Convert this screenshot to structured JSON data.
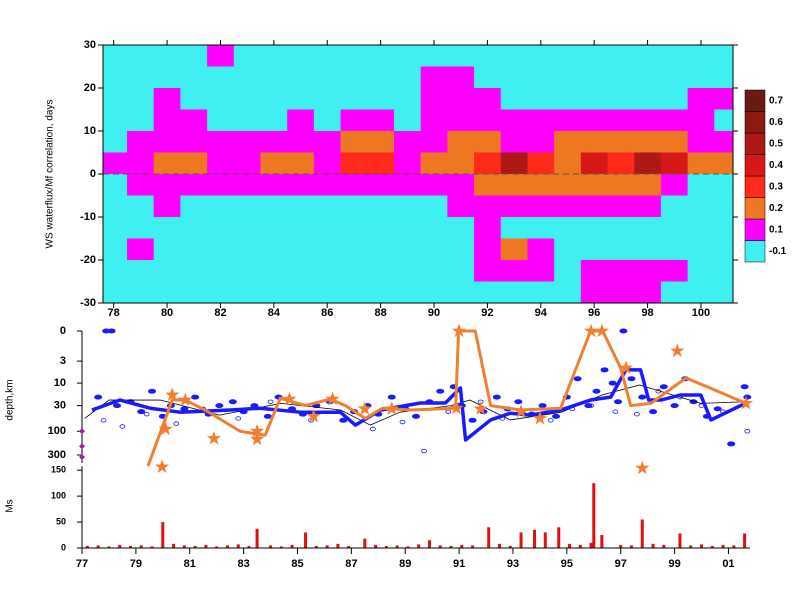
{
  "chart_data": [
    {
      "type": "heatmap",
      "ylabel": "WS waterflux/Mf correlation, days",
      "x": [
        78,
        79,
        80,
        81,
        82,
        83,
        84,
        85,
        86,
        87,
        88,
        89,
        90,
        91,
        92,
        93,
        94,
        95,
        96,
        97,
        98,
        99,
        100,
        101
      ],
      "y": [
        27.5,
        22.5,
        17.5,
        12.5,
        7.5,
        2.5,
        -2.5,
        -7.5,
        -12.5,
        -17.5,
        -22.5,
        -27.5
      ],
      "z": [
        [
          0.05,
          0.05,
          0.05,
          0.05,
          0.15,
          0.05,
          0.05,
          0.05,
          0.05,
          0.05,
          0.05,
          0.05,
          0.05,
          0.05,
          0.05,
          0.05,
          0.05,
          0.05,
          0.05,
          0.05,
          0.05,
          0.05,
          0.05,
          0.05
        ],
        [
          0.05,
          0.05,
          0.05,
          0.05,
          0.05,
          0.05,
          0.05,
          0.05,
          0.05,
          0.05,
          0.05,
          0.05,
          0.15,
          0.15,
          0.05,
          0.05,
          0.05,
          0.05,
          0.05,
          0.05,
          0.05,
          0.05,
          0.05,
          0.05
        ],
        [
          0.05,
          0.05,
          0.15,
          0.05,
          0.05,
          0.05,
          0.05,
          0.05,
          0.05,
          0.05,
          0.05,
          0.05,
          0.15,
          0.15,
          0.15,
          0.05,
          0.05,
          0.05,
          0.05,
          0.05,
          0.05,
          0.05,
          0.15,
          0.15
        ],
        [
          0.05,
          0.05,
          0.15,
          0.15,
          0.05,
          0.05,
          0.05,
          0.15,
          0.05,
          0.15,
          0.15,
          0.05,
          0.15,
          0.15,
          0.15,
          0.15,
          0.15,
          0.15,
          0.15,
          0.15,
          0.15,
          0.15,
          0.15,
          0.05
        ],
        [
          0.05,
          0.15,
          0.15,
          0.15,
          0.15,
          0.15,
          0.15,
          0.15,
          0.15,
          0.25,
          0.25,
          0.15,
          0.15,
          0.25,
          0.25,
          0.15,
          0.15,
          0.25,
          0.25,
          0.25,
          0.25,
          0.25,
          0.15,
          0.15
        ],
        [
          0.15,
          0.15,
          0.25,
          0.25,
          0.15,
          0.15,
          0.25,
          0.25,
          0.15,
          0.35,
          0.35,
          0.15,
          0.25,
          0.25,
          0.35,
          0.55,
          0.35,
          0.25,
          0.45,
          0.35,
          0.55,
          0.45,
          0.25,
          0.25
        ],
        [
          0.05,
          0.15,
          0.15,
          0.15,
          0.15,
          0.15,
          0.15,
          0.15,
          0.15,
          0.15,
          0.15,
          0.15,
          0.15,
          0.15,
          0.25,
          0.25,
          0.25,
          0.25,
          0.25,
          0.25,
          0.25,
          0.15,
          0.05,
          0.05
        ],
        [
          0.05,
          0.05,
          0.15,
          0.05,
          0.05,
          0.05,
          0.05,
          0.05,
          0.05,
          0.05,
          0.05,
          0.05,
          0.05,
          0.15,
          0.15,
          0.15,
          0.15,
          0.15,
          0.15,
          0.15,
          0.15,
          0.05,
          0.05,
          0.05
        ],
        [
          0.05,
          0.05,
          0.05,
          0.05,
          0.05,
          0.05,
          0.05,
          0.05,
          0.05,
          0.05,
          0.05,
          0.05,
          0.05,
          0.05,
          0.15,
          0.05,
          0.05,
          0.05,
          0.05,
          0.05,
          0.05,
          0.05,
          0.05,
          0.05
        ],
        [
          0.05,
          0.15,
          0.05,
          0.05,
          0.05,
          0.05,
          0.05,
          0.05,
          0.05,
          0.05,
          0.05,
          0.05,
          0.05,
          0.05,
          0.15,
          0.25,
          0.15,
          0.05,
          0.05,
          0.05,
          0.05,
          0.05,
          0.05,
          0.05
        ],
        [
          0.05,
          0.05,
          0.05,
          0.05,
          0.05,
          0.05,
          0.05,
          0.05,
          0.05,
          0.05,
          0.05,
          0.05,
          0.05,
          0.05,
          0.15,
          0.15,
          0.15,
          0.05,
          0.15,
          0.15,
          0.15,
          0.15,
          0.05,
          0.05
        ],
        [
          0.05,
          0.05,
          0.05,
          0.05,
          0.05,
          0.05,
          0.05,
          0.05,
          0.05,
          0.05,
          0.05,
          0.05,
          0.05,
          0.05,
          0.05,
          0.05,
          0.05,
          0.05,
          0.15,
          0.15,
          0.15,
          0.05,
          0.05,
          0.05
        ]
      ],
      "levels": [
        -0.1,
        0.1,
        0.2,
        0.3,
        0.4,
        0.5,
        0.6,
        0.7
      ],
      "colors": [
        "#40f0f0",
        "#ff00ff",
        "#ee7722",
        "#ff2a1a",
        "#d81818",
        "#b01818",
        "#8c1a10",
        "#6a1a0e"
      ],
      "xlim": [
        77.6,
        101.2
      ],
      "ylim": [
        -30,
        30
      ],
      "xticks": [
        78,
        80,
        82,
        84,
        86,
        88,
        90,
        92,
        94,
        96,
        98,
        100
      ],
      "yticks": [
        -30,
        -20,
        -10,
        0,
        10,
        20,
        30
      ],
      "hline": 0
    },
    {
      "type": "scatter-line",
      "ylabel": "depth,km",
      "yscale": "log1p",
      "yinvert": true,
      "xlim": [
        77,
        101.8
      ],
      "ylim": [
        0,
        600
      ],
      "yticks": [
        0,
        3,
        10,
        30,
        100,
        300
      ],
      "series": [
        {
          "kind": "dot",
          "color": "#1a1aff",
          "x": [
            77.9,
            78.1,
            77.6,
            78.3,
            78.8,
            79.2,
            79.6,
            80.0,
            80.3,
            80.8,
            81.2,
            81.7,
            82.1,
            82.6,
            83.0,
            83.4,
            83.9,
            84.3,
            84.8,
            85.2,
            85.7,
            86.2,
            86.7,
            87.1,
            87.6,
            88.0,
            88.5,
            89.0,
            89.4,
            89.9,
            90.3,
            90.8,
            91.1,
            91.5,
            91.9,
            92.4,
            92.8,
            93.2,
            93.7,
            94.1,
            94.6,
            95.0,
            95.4,
            95.8,
            96.1,
            96.4,
            96.7,
            96.9,
            97.1,
            97.4,
            97.8,
            98.2,
            98.6,
            99.0,
            99.4,
            99.7,
            100.2,
            100.6,
            101.1,
            101.6,
            101.7
          ],
          "values": [
            0,
            0,
            20,
            30,
            25,
            40,
            15,
            50,
            30,
            35,
            20,
            45,
            30,
            25,
            40,
            30,
            50,
            20,
            35,
            45,
            30,
            25,
            60,
            40,
            30,
            45,
            20,
            35,
            50,
            25,
            15,
            12,
            30,
            60,
            40,
            20,
            35,
            25,
            45,
            30,
            50,
            20,
            8,
            30,
            15,
            5,
            10,
            25,
            0,
            8,
            20,
            40,
            12,
            30,
            8,
            25,
            50,
            35,
            180,
            12,
            20
          ]
        },
        {
          "kind": "ring",
          "color": "#1a1aff",
          "x": [
            77.8,
            78.5,
            79.4,
            80.5,
            81.5,
            82.8,
            84.0,
            85.5,
            86.5,
            87.8,
            88.9,
            89.7,
            90.6,
            91.8,
            92.6,
            93.4,
            94.4,
            95.2,
            95.9,
            96.8,
            97.6,
            98.4,
            99.2,
            100.0,
            100.8,
            101.7
          ],
          "values": [
            60,
            80,
            45,
            70,
            35,
            55,
            25,
            60,
            40,
            90,
            65,
            250,
            40,
            25,
            55,
            45,
            60,
            35,
            30,
            40,
            45,
            15,
            20,
            30,
            40,
            100
          ]
        },
        {
          "kind": "diamond",
          "color": "#a020a0",
          "x": [
            77.0,
            77.0,
            77.0
          ],
          "values": [
            100,
            200,
            330
          ]
        },
        {
          "kind": "line",
          "color": "#000000",
          "width": 0.8,
          "x": [
            77.1,
            78.0,
            79.9,
            82.1,
            84.4,
            86.6,
            87.7,
            88.8,
            90.7,
            91.4,
            92.9,
            94.8,
            96.3,
            97.7,
            99.97,
            101.65
          ],
          "values": [
            55,
            23,
            23,
            47,
            27,
            37,
            75,
            41,
            30,
            23,
            59,
            41,
            18,
            11,
            27,
            25
          ]
        },
        {
          "kind": "line",
          "color": "#1a1aff",
          "width": 3.5,
          "x": [
            77.37,
            78.41,
            79.53,
            80.64,
            82.5,
            83.62,
            85.1,
            86.59,
            87.15,
            88.08,
            89.57,
            90.49,
            91.05,
            91.24,
            92.17,
            92.91,
            93.65,
            94.77,
            95.88,
            96.63,
            97.19,
            97.74,
            98.04,
            98.49,
            99.23,
            99.97,
            100.35,
            101.65
          ],
          "values": [
            37,
            23,
            34,
            41,
            37,
            34,
            41,
            41,
            75,
            37,
            26.5,
            26.5,
            12.8,
            150,
            59,
            43,
            47,
            37,
            23,
            20,
            5,
            5,
            23,
            23,
            18,
            18,
            59,
            26.5
          ]
        },
        {
          "kind": "line",
          "color": "#f08030",
          "width": 3,
          "x": [
            79.45,
            80.35,
            80.83,
            81.57,
            82.87,
            83.8,
            84.36,
            85.29,
            86.22,
            86.78,
            87.52,
            88.15,
            89.19,
            90.87,
            90.98,
            91.6,
            92.17,
            93.28,
            94.77,
            95.88,
            96.33,
            97.0,
            97.37,
            98.12,
            99.42,
            100.35,
            101.65
          ],
          "values": [
            500,
            23,
            23,
            37,
            100,
            120,
            21,
            30,
            22,
            30,
            55,
            34,
            37,
            34,
            0,
            0,
            30,
            37,
            34,
            0,
            0,
            4.5,
            30,
            27,
            7.7,
            13,
            27
          ]
        },
        {
          "kind": "star",
          "color": "#f08030",
          "x": [
            79.97,
            80.35,
            80.83,
            80.1,
            81.9,
            83.5,
            83.5,
            84.7,
            85.6,
            86.3,
            87.5,
            88.5,
            90.9,
            91.0,
            91.8,
            93.3,
            94.0,
            95.9,
            96.3,
            97.2,
            97.8,
            99.1,
            101.65
          ],
          "values": [
            520,
            18,
            23,
            90,
            140,
            145,
            100,
            22,
            50,
            22,
            35,
            35,
            34,
            0,
            35,
            40,
            55,
            0,
            0,
            4.5,
            550,
            1.5,
            27
          ]
        }
      ]
    },
    {
      "type": "bar",
      "ylabel": "Ms",
      "color": "#e01010",
      "x": [
        77.2,
        77.6,
        78.0,
        78.4,
        78.8,
        79.2,
        79.6,
        80.0,
        80.4,
        80.8,
        81.2,
        81.6,
        82.0,
        82.4,
        82.8,
        83.2,
        83.5,
        84.0,
        84.4,
        84.8,
        85.3,
        85.7,
        86.1,
        86.5,
        86.9,
        87.5,
        87.9,
        88.3,
        88.7,
        89.1,
        89.5,
        89.9,
        90.3,
        90.7,
        91.1,
        91.5,
        92.1,
        92.5,
        92.9,
        93.3,
        93.8,
        94.2,
        94.7,
        95.1,
        95.5,
        95.9,
        96.0,
        96.3,
        97.0,
        97.4,
        97.8,
        98.2,
        98.6,
        99.2,
        99.6,
        100.0,
        100.4,
        100.8,
        101.2,
        101.6
      ],
      "values": [
        4,
        5,
        3,
        6,
        4,
        5,
        3,
        50,
        8,
        5,
        4,
        6,
        3,
        5,
        7,
        4,
        37,
        5,
        3,
        6,
        30,
        4,
        5,
        8,
        4,
        18,
        6,
        4,
        5,
        3,
        7,
        15,
        5,
        4,
        6,
        5,
        40,
        8,
        4,
        30,
        35,
        30,
        40,
        8,
        6,
        10,
        125,
        25,
        6,
        5,
        55,
        8,
        6,
        28,
        5,
        7,
        4,
        6,
        5,
        28
      ],
      "xlim": [
        77,
        101.8
      ],
      "ylim": [
        0,
        160
      ],
      "xticks": [
        77,
        79,
        81,
        83,
        85,
        87,
        89,
        91,
        93,
        95,
        97,
        99,
        {
          "value": 101,
          "label": "01"
        }
      ],
      "yticks": [
        0,
        50,
        100,
        150
      ]
    }
  ]
}
